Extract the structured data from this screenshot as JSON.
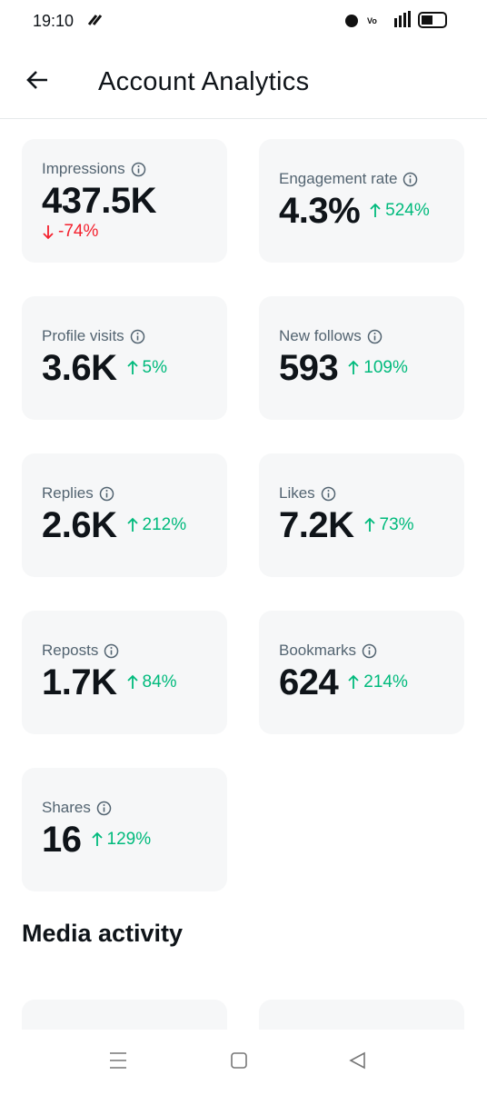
{
  "status": {
    "time": "19:10"
  },
  "header": {
    "title": "Account Analytics"
  },
  "metrics": [
    {
      "label": "Impressions",
      "value": "437.5K",
      "change": "-74%",
      "direction": "down"
    },
    {
      "label": "Engagement rate",
      "value": "4.3%",
      "change": "524%",
      "direction": "up"
    },
    {
      "label": "Profile visits",
      "value": "3.6K",
      "change": "5%",
      "direction": "up"
    },
    {
      "label": "New follows",
      "value": "593",
      "change": "109%",
      "direction": "up"
    },
    {
      "label": "Replies",
      "value": "2.6K",
      "change": "212%",
      "direction": "up"
    },
    {
      "label": "Likes",
      "value": "7.2K",
      "change": "73%",
      "direction": "up"
    },
    {
      "label": "Reposts",
      "value": "1.7K",
      "change": "84%",
      "direction": "up"
    },
    {
      "label": "Bookmarks",
      "value": "624",
      "change": "214%",
      "direction": "up"
    },
    {
      "label": "Shares",
      "value": "16",
      "change": "129%",
      "direction": "up"
    }
  ],
  "section": {
    "title": "Media activity"
  }
}
